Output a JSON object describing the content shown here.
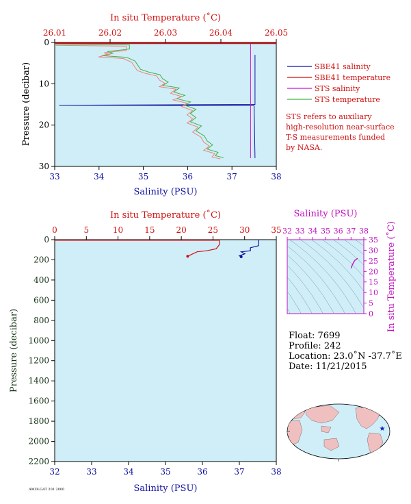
{
  "chart_data": [
    {
      "id": "top",
      "type": "line",
      "x_top_label": "In situ Temperature (˚C)",
      "x_top_range": [
        26.01,
        26.05
      ],
      "x_top_ticks": [
        "26.01",
        "26.02",
        "26.03",
        "26.04",
        "26.05"
      ],
      "x_bottom_label": "Salinity (PSU)",
      "x_bottom_range": [
        33,
        38
      ],
      "x_bottom_ticks": [
        "33",
        "34",
        "35",
        "36",
        "37",
        "38"
      ],
      "ylabel": "Pressure (decibar)",
      "ylim": [
        0,
        30
      ],
      "y_ticks": [
        "0",
        "10",
        "20",
        "30"
      ],
      "series": [
        {
          "name": "SBE41 salinity",
          "color": "#1010a0",
          "axis": "salinity",
          "points": [
            [
              37.52,
              3
            ],
            [
              37.52,
              15
            ],
            [
              33.1,
              15.2
            ],
            [
              37.5,
              15.3
            ],
            [
              37.52,
              28
            ]
          ]
        },
        {
          "name": "SBE41 temperature",
          "color": "#d01010",
          "axis": "temperature",
          "points": [
            [
              26.01,
              0.2
            ],
            [
              26.05,
              0.2
            ]
          ]
        },
        {
          "name": "STS salinity",
          "color": "#d010d0",
          "axis": "salinity",
          "points": [
            [
              37.42,
              0.3
            ],
            [
              37.42,
              28
            ]
          ]
        },
        {
          "name": "STS temperature",
          "color": "#44b044",
          "axis": "temperature",
          "points": [
            [
              26.01,
              0.4
            ],
            [
              26.0235,
              0.6
            ],
            [
              26.0235,
              1.6
            ],
            [
              26.0195,
              2.2
            ],
            [
              26.0205,
              2.6
            ],
            [
              26.0185,
              3.2
            ],
            [
              26.023,
              3.6
            ],
            [
              26.0245,
              4.5
            ],
            [
              26.025,
              5.5
            ],
            [
              26.0255,
              6.5
            ],
            [
              26.027,
              7.2
            ],
            [
              26.029,
              7.8
            ],
            [
              26.0295,
              8.8
            ],
            [
              26.0305,
              9.6
            ],
            [
              26.0295,
              10.4
            ],
            [
              26.0325,
              11.0
            ],
            [
              26.0315,
              12.0
            ],
            [
              26.0335,
              12.8
            ],
            [
              26.032,
              13.6
            ],
            [
              26.0345,
              14.4
            ],
            [
              26.0335,
              15.2
            ],
            [
              26.0355,
              16.2
            ],
            [
              26.0345,
              17.2
            ],
            [
              26.0355,
              18.2
            ],
            [
              26.0345,
              19.2
            ],
            [
              26.0365,
              20.2
            ],
            [
              26.0355,
              21.4
            ],
            [
              26.037,
              22.6
            ],
            [
              26.0375,
              23.8
            ],
            [
              26.0385,
              24.8
            ],
            [
              26.0375,
              25.8
            ],
            [
              26.0395,
              26.6
            ],
            [
              26.039,
              27.4
            ],
            [
              26.0405,
              27.9
            ]
          ]
        }
      ],
      "legend": {
        "placement": "right",
        "entries": [
          {
            "label": "SBE41 salinity",
            "color": "#1010a0"
          },
          {
            "label": "SBE41 temperature",
            "color": "#d01010"
          },
          {
            "label": "STS salinity",
            "color": "#d010d0"
          },
          {
            "label": "STS temperature",
            "color": "#44b044"
          }
        ]
      },
      "note": [
        "STS refers to auxiliary",
        "high-resolution near-surface",
        "T-S measurements funded",
        "by NASA."
      ]
    },
    {
      "id": "bottom",
      "type": "line",
      "x_top_label": "In situ Temperature (˚C)",
      "x_top_range": [
        0,
        35
      ],
      "x_top_ticks": [
        "0",
        "5",
        "10",
        "15",
        "20",
        "25",
        "30",
        "35"
      ],
      "x_bottom_label": "Salinity (PSU)",
      "x_bottom_range": [
        32,
        38
      ],
      "x_bottom_ticks": [
        "32",
        "33",
        "34",
        "35",
        "36",
        "37",
        "38"
      ],
      "ylabel": "Pressure (decibar)",
      "ylim": [
        0,
        2200
      ],
      "y_ticks": [
        "0",
        "200",
        "400",
        "600",
        "800",
        "1000",
        "1200",
        "1400",
        "1600",
        "1800",
        "2000",
        "2200"
      ],
      "series": [
        {
          "name": "temperature",
          "color": "#d01010",
          "axis": "temperature",
          "points": [
            [
              26.0,
              0
            ],
            [
              26.0,
              50
            ],
            [
              25.5,
              90
            ],
            [
              24.0,
              110
            ],
            [
              22.5,
              120
            ],
            [
              21.5,
              150
            ],
            [
              21.0,
              165
            ]
          ]
        },
        {
          "name": "salinity",
          "color": "#1010a0",
          "axis": "salinity",
          "points": [
            [
              37.52,
              0
            ],
            [
              37.52,
              60
            ],
            [
              37.3,
              80
            ],
            [
              37.3,
              110
            ],
            [
              37.05,
              120
            ],
            [
              37.15,
              140
            ],
            [
              37.0,
              160
            ],
            [
              37.05,
              170
            ]
          ]
        }
      ]
    },
    {
      "id": "ts",
      "type": "line",
      "x_top_label": "Salinity (PSU)",
      "xlim": [
        32,
        38
      ],
      "x_ticks": [
        "32",
        "33",
        "34",
        "35",
        "36",
        "37",
        "38"
      ],
      "ylabel": "In situ Temperature (˚C)",
      "ylim": [
        0,
        35
      ],
      "y_ticks": [
        "0",
        "5",
        "10",
        "15",
        "20",
        "25",
        "30",
        "35"
      ],
      "series": [
        {
          "name": "ts-profile",
          "color": "#c010c0",
          "points": [
            [
              37.52,
              26.2
            ],
            [
              37.3,
              25.2
            ],
            [
              37.2,
              24.3
            ],
            [
              37.1,
              23.0
            ],
            [
              37.0,
              21.5
            ]
          ]
        }
      ]
    }
  ],
  "info": {
    "float": "Float:  7699",
    "profile": "Profile:  242",
    "location": "Location:  23.0˚N  -37.7˚E",
    "date": "Date:  11/21/2015"
  },
  "footer_code": "AMOLGAT 201 2000"
}
